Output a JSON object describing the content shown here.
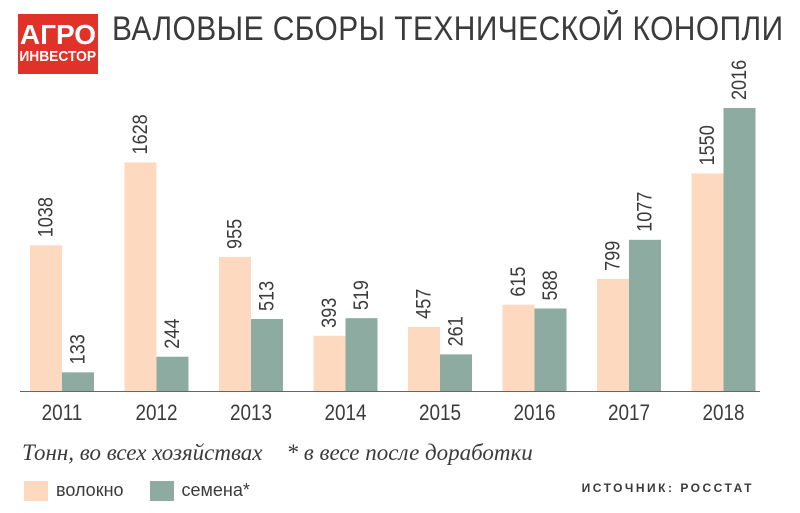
{
  "logo": {
    "line1": "АГРО",
    "line2": "ИНВЕСТОР"
  },
  "header": {
    "title": "ВАЛОВЫЕ СБОРЫ ТЕХНИЧЕСКОЙ КОНОПЛИ"
  },
  "note": {
    "units": "Тонн, во всех хозяйствах",
    "footnote": "* в весе после доработки"
  },
  "source": "ИСТОЧНИК: РОССТАТ",
  "legend": {
    "fiber": "волокно",
    "seeds": "семена*"
  },
  "colors": {
    "fiber": "#fcd9bf",
    "seeds": "#8eaba1",
    "text": "#3b3b3b",
    "brand": "#e1322a",
    "axis": "#666666"
  },
  "chart_data": {
    "type": "bar",
    "title": "ВАЛОВЫЕ СБОРЫ ТЕХНИЧЕСКОЙ КОНОПЛИ",
    "xlabel": "",
    "ylabel": "Тонн",
    "categories": [
      "2011",
      "2012",
      "2013",
      "2014",
      "2015",
      "2016",
      "2017",
      "2018"
    ],
    "series": [
      {
        "name": "волокно",
        "values": [
          1038,
          1628,
          955,
          393,
          457,
          615,
          799,
          1550
        ]
      },
      {
        "name": "семена*",
        "values": [
          133,
          244,
          513,
          519,
          261,
          588,
          1077,
          2016
        ]
      }
    ],
    "ylim": [
      0,
      2016
    ],
    "grid": false,
    "legend_position": "bottom-left"
  }
}
